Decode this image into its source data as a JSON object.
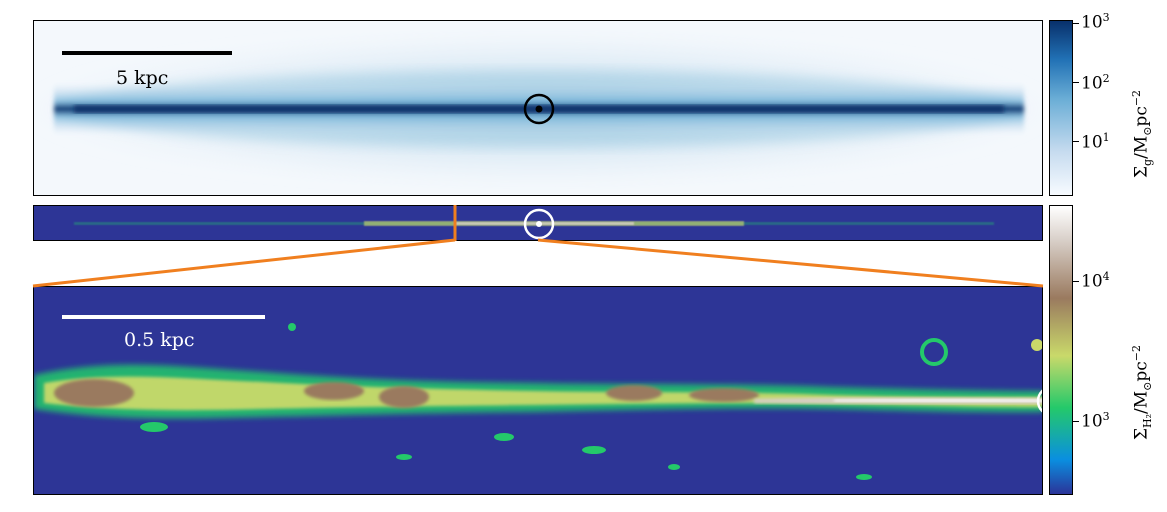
{
  "panels": {
    "gas": {
      "scalebar_label": "5 kpc",
      "colorbar": {
        "ticks": [
          {
            "base": "10",
            "exp": "3"
          },
          {
            "base": "10",
            "exp": "2"
          },
          {
            "base": "10",
            "exp": "1"
          }
        ],
        "label_main": "Σ",
        "label_sub": "g",
        "label_unit": "/M",
        "label_unit2": "pc",
        "label_exp": "−2",
        "colors": [
          "#f7fbff",
          "#c6dbef",
          "#6baed6",
          "#2171b5",
          "#08306b"
        ]
      }
    },
    "h2": {
      "scalebar_label": "0.5 kpc",
      "colorbar": {
        "ticks": [
          {
            "base": "10",
            "exp": "4"
          },
          {
            "base": "10",
            "exp": "3"
          }
        ],
        "label_main": "Σ",
        "label_sub": "H₂",
        "label_unit": "/M",
        "label_unit2": "pc",
        "label_exp": "−2",
        "colors": [
          "#2b3499",
          "#0a8fe0",
          "#24c96a",
          "#c9d96a",
          "#9a7a5f",
          "#d8cfc8",
          "#ffffff"
        ]
      }
    },
    "background_color": "#2d3596",
    "zoom_line_color": "#f07f1f"
  }
}
